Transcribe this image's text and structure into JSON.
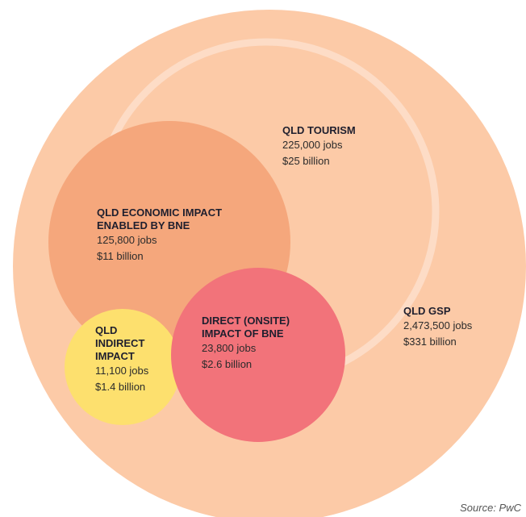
{
  "nodes": [
    {
      "title": [
        "QLD GSP"
      ],
      "jobs": "2,473,500 jobs",
      "value": "$331 billion"
    },
    {
      "title": [
        "QLD TOURISM"
      ],
      "jobs": "225,000 jobs",
      "value": "$25 billion"
    },
    {
      "title": [
        "QLD ECONOMIC IMPACT",
        "ENABLED BY BNE"
      ],
      "jobs": "125,800 jobs",
      "value": "$11 billion"
    },
    {
      "title": [
        "DIRECT (ONSITE)",
        "IMPACT OF BNE"
      ],
      "jobs": "23,800 jobs",
      "value": "$2.6 billion"
    },
    {
      "title": [
        "QLD",
        "INDIRECT",
        "IMPACT"
      ],
      "jobs": "11,100 jobs",
      "value": "$1.4 billion"
    }
  ],
  "source": "Source: PwC"
}
